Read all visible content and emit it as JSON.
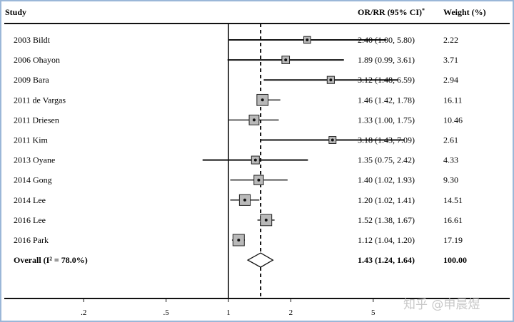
{
  "header": {
    "study": "Study",
    "or_rr": "OR/RR (95% CI)",
    "or_rr_mark": "*",
    "weight": "Weight (%)"
  },
  "chart_data": {
    "type": "forest",
    "scale": "log",
    "xticks": [
      0.2,
      0.5,
      1,
      2,
      5
    ],
    "xtick_labels": [
      ".2",
      ".5",
      "1",
      "2",
      "5"
    ],
    "null_line": 1,
    "overall_line": 1.43,
    "studies": [
      {
        "label": "2003 Bildt",
        "est": 2.4,
        "lo": 1.0,
        "hi": 5.8,
        "ci_text": "2.40 (1.00, 5.80)",
        "weight": 2.22,
        "weight_text": "2.22"
      },
      {
        "label": "2006 Ohayon",
        "est": 1.89,
        "lo": 0.99,
        "hi": 3.61,
        "ci_text": "1.89 (0.99, 3.61)",
        "weight": 3.71,
        "weight_text": "3.71"
      },
      {
        "label": "2009 Bara",
        "est": 3.12,
        "lo": 1.48,
        "hi": 6.59,
        "ci_text": "3.12 (1.48, 6.59)",
        "weight": 2.94,
        "weight_text": "2.94"
      },
      {
        "label": "2011 de Vargas",
        "est": 1.46,
        "lo": 1.42,
        "hi": 1.78,
        "ci_text": "1.46 (1.42, 1.78)",
        "weight": 16.11,
        "weight_text": "16.11"
      },
      {
        "label": "2011 Driesen",
        "est": 1.33,
        "lo": 1.0,
        "hi": 1.75,
        "ci_text": "1.33 (1.00, 1.75)",
        "weight": 10.46,
        "weight_text": "10.46"
      },
      {
        "label": "2011 Kim",
        "est": 3.18,
        "lo": 1.43,
        "hi": 7.09,
        "ci_text": "3.18 (1.43, 7.09)",
        "weight": 2.61,
        "weight_text": "2.61"
      },
      {
        "label": "2013 Oyane",
        "est": 1.35,
        "lo": 0.75,
        "hi": 2.42,
        "ci_text": "1.35 (0.75, 2.42)",
        "weight": 4.33,
        "weight_text": "4.33"
      },
      {
        "label": "2014 Gong",
        "est": 1.4,
        "lo": 1.02,
        "hi": 1.93,
        "ci_text": "1.40 (1.02, 1.93)",
        "weight": 9.3,
        "weight_text": "9.30"
      },
      {
        "label": "2014 Lee",
        "est": 1.2,
        "lo": 1.02,
        "hi": 1.41,
        "ci_text": "1.20 (1.02, 1.41)",
        "weight": 14.51,
        "weight_text": "14.51"
      },
      {
        "label": "2016 Lee",
        "est": 1.52,
        "lo": 1.38,
        "hi": 1.67,
        "ci_text": "1.52 (1.38, 1.67)",
        "weight": 16.61,
        "weight_text": "16.61"
      },
      {
        "label": "2016 Park",
        "est": 1.12,
        "lo": 1.04,
        "hi": 1.2,
        "ci_text": "1.12 (1.04, 1.20)",
        "weight": 17.19,
        "weight_text": "17.19"
      }
    ],
    "overall": {
      "label": "Overall  (I² = 78.0%)",
      "est": 1.43,
      "lo": 1.24,
      "hi": 1.64,
      "ci_text": "1.43 (1.24, 1.64)",
      "weight_text": "100.00"
    }
  },
  "watermark": "知乎 @申晨煜",
  "colors": {
    "frame": "#9bb7d8",
    "box_fill": "#b9b9b9",
    "ink": "#111111"
  }
}
